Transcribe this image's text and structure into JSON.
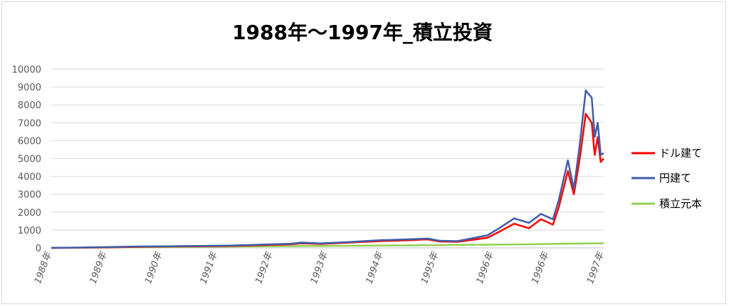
{
  "chart_data": {
    "type": "line",
    "title": "1988年～1997年_積立投資",
    "xlabel": "",
    "ylabel": "",
    "ylim": [
      0,
      10000
    ],
    "yticks": [
      0,
      1000,
      2000,
      3000,
      4000,
      5000,
      6000,
      7000,
      8000,
      9000,
      10000
    ],
    "x_tick_labels": [
      "1988年",
      "1989年",
      "1990年",
      "1991年",
      "1992年",
      "1993年",
      "1994年",
      "1995年",
      "1996年",
      "1996年",
      "1997年"
    ],
    "grid": true,
    "legend_position": "right",
    "x_domain": [
      1988.0,
      1997.25
    ],
    "series": [
      {
        "name": "ドル建て",
        "color": "#ff0000",
        "points": [
          [
            1988.0,
            0
          ],
          [
            1988.5,
            10
          ],
          [
            1989.0,
            30
          ],
          [
            1989.5,
            60
          ],
          [
            1990.0,
            80
          ],
          [
            1990.5,
            90
          ],
          [
            1991.0,
            110
          ],
          [
            1991.5,
            150
          ],
          [
            1992.0,
            200
          ],
          [
            1992.2,
            260
          ],
          [
            1992.5,
            220
          ],
          [
            1993.0,
            300
          ],
          [
            1993.5,
            380
          ],
          [
            1994.0,
            430
          ],
          [
            1994.3,
            480
          ],
          [
            1994.5,
            360
          ],
          [
            1994.8,
            340
          ],
          [
            1995.0,
            430
          ],
          [
            1995.3,
            560
          ],
          [
            1995.5,
            900
          ],
          [
            1995.75,
            1350
          ],
          [
            1996.0,
            1100
          ],
          [
            1996.2,
            1600
          ],
          [
            1996.4,
            1300
          ],
          [
            1996.5,
            2300
          ],
          [
            1996.65,
            4300
          ],
          [
            1996.75,
            3000
          ],
          [
            1996.85,
            5000
          ],
          [
            1996.95,
            7500
          ],
          [
            1997.05,
            7000
          ],
          [
            1997.1,
            5200
          ],
          [
            1997.15,
            6200
          ],
          [
            1997.2,
            4800
          ],
          [
            1997.25,
            5000
          ]
        ]
      },
      {
        "name": "円建て",
        "color": "#3f5ea8",
        "points": [
          [
            1988.0,
            0
          ],
          [
            1988.5,
            20
          ],
          [
            1989.0,
            50
          ],
          [
            1989.5,
            80
          ],
          [
            1990.0,
            90
          ],
          [
            1990.5,
            110
          ],
          [
            1991.0,
            130
          ],
          [
            1991.5,
            180
          ],
          [
            1992.0,
            230
          ],
          [
            1992.2,
            300
          ],
          [
            1992.5,
            250
          ],
          [
            1993.0,
            330
          ],
          [
            1993.5,
            430
          ],
          [
            1994.0,
            480
          ],
          [
            1994.3,
            520
          ],
          [
            1994.5,
            400
          ],
          [
            1994.8,
            380
          ],
          [
            1995.0,
            500
          ],
          [
            1995.3,
            700
          ],
          [
            1995.5,
            1100
          ],
          [
            1995.75,
            1650
          ],
          [
            1996.0,
            1400
          ],
          [
            1996.2,
            1900
          ],
          [
            1996.4,
            1600
          ],
          [
            1996.5,
            2700
          ],
          [
            1996.65,
            4900
          ],
          [
            1996.75,
            3300
          ],
          [
            1996.85,
            5800
          ],
          [
            1996.95,
            8800
          ],
          [
            1997.05,
            8400
          ],
          [
            1997.1,
            6200
          ],
          [
            1997.15,
            7000
          ],
          [
            1997.2,
            5200
          ],
          [
            1997.25,
            5300
          ]
        ]
      },
      {
        "name": "積立元本",
        "color": "#92d050",
        "points": [
          [
            1988.0,
            0
          ],
          [
            1989.0,
            25
          ],
          [
            1990.0,
            50
          ],
          [
            1991.0,
            75
          ],
          [
            1992.0,
            100
          ],
          [
            1993.0,
            120
          ],
          [
            1994.0,
            140
          ],
          [
            1995.0,
            170
          ],
          [
            1996.0,
            200
          ],
          [
            1996.5,
            230
          ],
          [
            1997.0,
            250
          ],
          [
            1997.25,
            260
          ]
        ]
      }
    ]
  }
}
